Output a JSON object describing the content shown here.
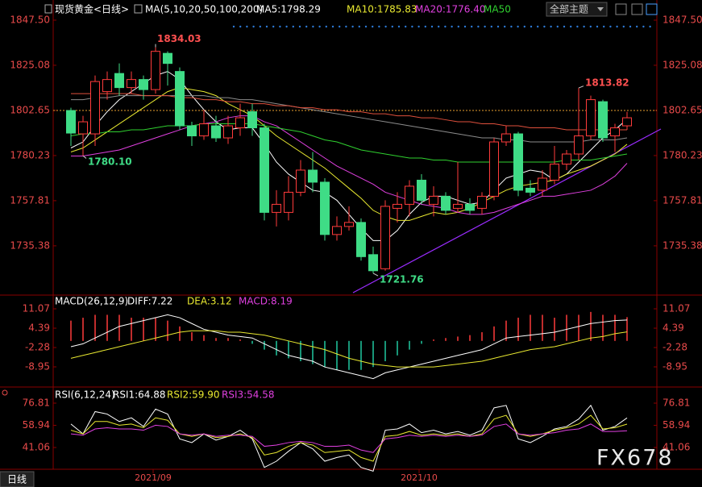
{
  "header": {
    "theme_menu": "全部主题",
    "period_button": "日线",
    "watermark": "FX678"
  },
  "chart_data": [
    {
      "type": "candlestick",
      "title": "现货黄金<日线>",
      "subtitle": "MA(5,10,20,50,100,200)",
      "candles": {
        "open": [
          1802.6,
          1791,
          1791,
          1812,
          1821,
          1814,
          1818,
          1813,
          1831,
          1822,
          1795,
          1790,
          1795,
          1789,
          1794,
          1802,
          1794,
          1752,
          1752,
          1762,
          1773,
          1767,
          1741,
          1745,
          1747,
          1731,
          1724,
          1754,
          1756,
          1768,
          1756,
          1760,
          1754,
          1756,
          1754,
          1760,
          1787,
          1791,
          1764,
          1763,
          1768,
          1776,
          1781,
          1790,
          1807,
          1790,
          1795
        ],
        "high": [
          1804,
          1800,
          1820,
          1822,
          1826,
          1822,
          1820,
          1834.03,
          1832,
          1824,
          1797,
          1803,
          1800,
          1800,
          1806,
          1806,
          1796,
          1763,
          1770,
          1778,
          1782,
          1769,
          1750,
          1755,
          1749,
          1735,
          1758,
          1762,
          1768,
          1771,
          1765,
          1762,
          1777,
          1759,
          1762,
          1789,
          1795,
          1792,
          1768,
          1773,
          1785,
          1783,
          1813.82,
          1810,
          1808,
          1796,
          1802
        ],
        "low": [
          1785,
          1780.1,
          1785,
          1808,
          1810,
          1811,
          1808,
          1811,
          1815,
          1793,
          1785,
          1788,
          1787,
          1786,
          1790,
          1790,
          1748,
          1745,
          1748,
          1760,
          1762,
          1738,
          1738,
          1743,
          1728,
          1721.76,
          1723,
          1747,
          1750,
          1756,
          1750,
          1751,
          1752,
          1751,
          1751,
          1758,
          1785,
          1760,
          1760,
          1760,
          1766,
          1773,
          1778,
          1788,
          1787,
          1782,
          1793
        ],
        "close": [
          1791.4,
          1797,
          1817,
          1818,
          1814,
          1818,
          1813,
          1832,
          1826,
          1795,
          1790,
          1796,
          1789,
          1795,
          1799,
          1794,
          1752,
          1756,
          1762,
          1773,
          1767,
          1741,
          1745,
          1747,
          1730,
          1723,
          1755,
          1756,
          1765,
          1758,
          1760,
          1753,
          1756,
          1753,
          1760,
          1787,
          1791,
          1763,
          1762,
          1769,
          1776,
          1781,
          1790,
          1808,
          1789,
          1794,
          1799
        ],
        "up_color": "#ff3b3b",
        "down_color": "#3fdc86"
      },
      "series": [
        {
          "name": "MA5:1798.29",
          "color": "#ffffff",
          "values": [
            1784,
            1787,
            1795,
            1802,
            1808,
            1812,
            1816,
            1820,
            1822,
            1818,
            1810,
            1803,
            1797,
            1793,
            1794,
            1794,
            1786,
            1777,
            1771,
            1767,
            1763,
            1762,
            1758,
            1751,
            1744,
            1738,
            1738,
            1743,
            1751,
            1757,
            1760,
            1760,
            1758,
            1756,
            1757,
            1763,
            1769,
            1771,
            1773,
            1772,
            1768,
            1771,
            1777,
            1783,
            1789,
            1793,
            1798.29
          ]
        },
        {
          "name": "MA10:1785.83",
          "color": "#e8e830",
          "values": [
            1782,
            1784,
            1788,
            1792,
            1796,
            1800,
            1804,
            1808,
            1812,
            1814,
            1813,
            1812,
            1810,
            1806,
            1803,
            1800,
            1795,
            1790,
            1786,
            1782,
            1778,
            1774,
            1769,
            1764,
            1759,
            1753,
            1750,
            1748,
            1748,
            1750,
            1752,
            1751,
            1752,
            1754,
            1757,
            1760,
            1763,
            1765,
            1766,
            1767,
            1768,
            1771,
            1773,
            1775,
            1778,
            1781,
            1785.83
          ]
        },
        {
          "name": "MA20:1776.40",
          "color": "#e040e0",
          "values": [
            1780,
            1780,
            1781,
            1782,
            1783,
            1785,
            1787,
            1789,
            1791,
            1793,
            1795,
            1796,
            1797,
            1799,
            1800,
            1800,
            1797,
            1795,
            1791,
            1787,
            1783,
            1779,
            1775,
            1772,
            1769,
            1766,
            1762,
            1760,
            1758,
            1756,
            1755,
            1754,
            1752,
            1751,
            1751,
            1752,
            1754,
            1756,
            1758,
            1760,
            1760,
            1761,
            1762,
            1763,
            1766,
            1770,
            1776.4
          ]
        },
        {
          "name": "MA50",
          "color": "#30d030",
          "values": [
            1790,
            1791,
            1791,
            1792,
            1792,
            1793,
            1793,
            1794,
            1795,
            1795,
            1795,
            1796,
            1796,
            1796,
            1796,
            1796,
            1795,
            1794,
            1793,
            1792,
            1790,
            1788,
            1787,
            1785,
            1783,
            1782,
            1781,
            1780,
            1779,
            1779,
            1778,
            1778,
            1777,
            1777,
            1777,
            1777,
            1777,
            1777,
            1777,
            1777,
            1777,
            1778,
            1778,
            1778,
            1779,
            1780,
            1781
          ]
        },
        {
          "color": "#8c8c8c",
          "values": [
            1808,
            1808,
            1809,
            1809,
            1810,
            1810,
            1810,
            1810,
            1810,
            1810,
            1810,
            1810,
            1809,
            1809,
            1808,
            1808,
            1807,
            1806,
            1805,
            1804,
            1803,
            1802,
            1801,
            1800,
            1799,
            1798,
            1797,
            1796,
            1795,
            1794,
            1793,
            1792,
            1791,
            1790,
            1789,
            1789,
            1788,
            1788,
            1787,
            1787,
            1787,
            1787,
            1787,
            1788,
            1788,
            1788,
            1789
          ]
        },
        {
          "color": "#e0503c",
          "values": [
            1811,
            1811,
            1811,
            1811,
            1811,
            1811,
            1810,
            1810,
            1810,
            1809,
            1809,
            1808,
            1808,
            1807,
            1807,
            1806,
            1806,
            1805,
            1805,
            1804,
            1804,
            1803,
            1803,
            1802,
            1802,
            1801,
            1801,
            1800,
            1800,
            1799,
            1799,
            1798,
            1797,
            1797,
            1796,
            1796,
            1795,
            1795,
            1794,
            1794,
            1794,
            1793,
            1793,
            1793,
            1793,
            1793,
            1793
          ]
        }
      ],
      "annotations": [
        "1834.03",
        "1780.10",
        "1721.76",
        "1813.82"
      ],
      "x_labels": [
        "2021/09",
        "2021/10"
      ],
      "ylim": [
        1711.3,
        1851.5
      ],
      "yticks": [
        {
          "value": 1847.5,
          "label": "1847.50"
        },
        1825.08,
        1802.65,
        1780.23,
        1757.81,
        1735.38
      ]
    },
    {
      "type": "combo",
      "title": "MACD(26,12,9)",
      "series": [
        {
          "name": "DIFF:7.22",
          "kind": "line",
          "color": "#ffffff",
          "values": [
            -2,
            -1,
            1,
            3,
            5,
            6,
            7,
            8,
            9,
            8,
            6,
            4,
            3,
            2,
            1.5,
            1,
            -1,
            -3,
            -5,
            -6,
            -7,
            -9,
            -10,
            -11,
            -12,
            -13,
            -11,
            -10,
            -9,
            -8,
            -7,
            -6,
            -5,
            -4,
            -3,
            -1,
            1,
            1.5,
            2,
            2.5,
            3,
            4,
            5,
            6,
            6.5,
            7,
            7.22
          ]
        },
        {
          "name": "DEA:3.12",
          "kind": "line",
          "color": "#e8e830",
          "values": [
            -6,
            -5,
            -4,
            -3,
            -2,
            -1,
            0,
            1,
            2,
            3,
            3.5,
            3.5,
            3.5,
            3,
            3,
            2.5,
            2,
            1,
            0,
            -1,
            -2,
            -3,
            -4.5,
            -6,
            -7,
            -8,
            -8.5,
            -9,
            -9,
            -9,
            -9,
            -8.5,
            -8,
            -7.5,
            -7,
            -6,
            -5,
            -4,
            -3,
            -2.5,
            -2,
            -1,
            0,
            1,
            1.5,
            2.5,
            3.12
          ]
        },
        {
          "name": "MACD:8.19",
          "kind": "bar",
          "color": "#e040e0",
          "up_color": "#ff3b3b",
          "down_color": "#20c8a0",
          "values": [
            7,
            8,
            9,
            9,
            9,
            8,
            8,
            8,
            7,
            5,
            3,
            2,
            1,
            1,
            0.5,
            -1,
            -3,
            -5,
            -6,
            -7,
            -8,
            -9,
            -10,
            -10,
            -10,
            -9,
            -7,
            -5,
            -3,
            -1,
            0.5,
            1,
            1.5,
            2,
            3,
            5,
            7,
            8,
            9,
            9,
            8,
            9,
            9,
            10,
            9,
            9,
            8.19
          ]
        }
      ],
      "ylim": [
        -13.12,
        14.13
      ],
      "yticks": [
        11.07,
        4.39,
        -2.28,
        -8.95
      ]
    },
    {
      "type": "line",
      "title": "RSI(6,12,24)",
      "series": [
        {
          "name": "RSI1:64.88",
          "color": "#ffffff",
          "values": [
            60,
            52,
            70,
            68,
            62,
            65,
            58,
            72,
            68,
            48,
            45,
            52,
            47,
            50,
            55,
            48,
            25,
            30,
            38,
            45,
            40,
            30,
            33,
            35,
            25,
            22,
            55,
            56,
            60,
            53,
            55,
            52,
            54,
            51,
            55,
            73,
            75,
            48,
            45,
            50,
            56,
            58,
            64,
            75,
            55,
            58,
            64.88
          ]
        },
        {
          "name": "RSI2:59.90",
          "color": "#e8e830",
          "values": [
            55,
            52,
            62,
            62,
            59,
            60,
            57,
            65,
            63,
            52,
            50,
            52,
            49,
            50,
            52,
            49,
            35,
            37,
            42,
            45,
            43,
            37,
            38,
            39,
            33,
            30,
            50,
            51,
            54,
            51,
            52,
            51,
            52,
            50,
            52,
            64,
            67,
            52,
            50,
            52,
            55,
            57,
            60,
            67,
            56,
            57,
            59.9
          ]
        },
        {
          "name": "RSI3:54.58",
          "color": "#e040e0",
          "values": [
            52,
            51,
            56,
            57,
            56,
            56,
            55,
            59,
            58,
            52,
            51,
            52,
            50,
            51,
            51,
            50,
            42,
            43,
            45,
            46,
            45,
            42,
            42,
            43,
            39,
            37,
            48,
            49,
            51,
            50,
            51,
            50,
            51,
            50,
            51,
            58,
            60,
            52,
            51,
            52,
            53,
            55,
            56,
            60,
            54,
            54,
            54.58
          ]
        }
      ],
      "ylim": [
        28.06,
        84.6
      ],
      "yticks": [
        76.81,
        58.94,
        41.06
      ]
    }
  ]
}
